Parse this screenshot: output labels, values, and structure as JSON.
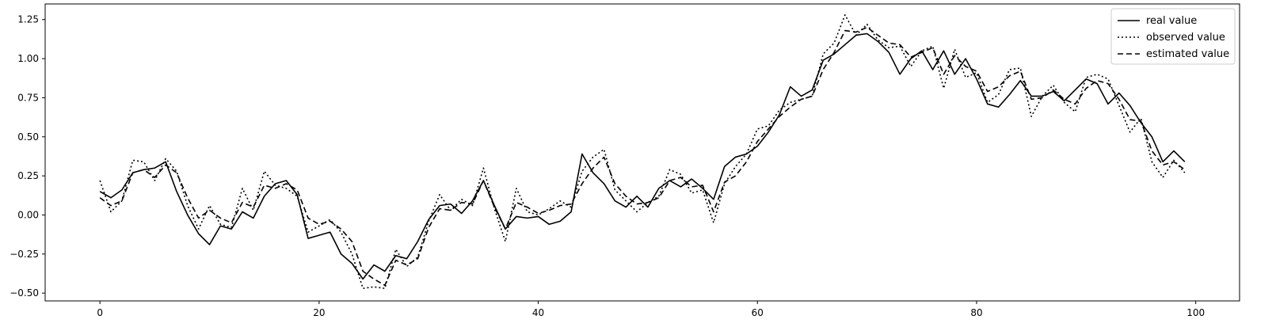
{
  "chart_data": {
    "type": "line",
    "title": "",
    "xlabel": "",
    "ylabel": "",
    "xlim": [
      -5,
      104
    ],
    "ylim": [
      -0.55,
      1.35
    ],
    "xticks": [
      0,
      20,
      40,
      60,
      80,
      100
    ],
    "yticks": [
      -0.5,
      -0.25,
      0.0,
      0.25,
      0.5,
      0.75,
      1.0,
      1.25
    ],
    "xtick_labels": [
      "0",
      "20",
      "40",
      "60",
      "80",
      "100"
    ],
    "ytick_labels": [
      "−0.50",
      "−0.25",
      "0.00",
      "0.25",
      "0.50",
      "0.75",
      "1.00",
      "1.25"
    ],
    "grid": false,
    "legend_position": "top-right",
    "legend": [
      "real value",
      "observed value",
      "estimated value"
    ],
    "x": [
      0,
      1,
      2,
      3,
      4,
      5,
      6,
      7,
      8,
      9,
      10,
      11,
      12,
      13,
      14,
      15,
      16,
      17,
      18,
      19,
      20,
      21,
      22,
      23,
      24,
      25,
      26,
      27,
      28,
      29,
      30,
      31,
      32,
      33,
      34,
      35,
      36,
      37,
      38,
      39,
      40,
      41,
      42,
      43,
      44,
      45,
      46,
      47,
      48,
      49,
      50,
      51,
      52,
      53,
      54,
      55,
      56,
      57,
      58,
      59,
      60,
      61,
      62,
      63,
      64,
      65,
      66,
      67,
      68,
      69,
      70,
      71,
      72,
      73,
      74,
      75,
      76,
      77,
      78,
      79,
      80,
      81,
      82,
      83,
      84,
      85,
      86,
      87,
      88,
      89,
      90,
      91,
      92,
      93,
      94,
      95,
      96,
      97,
      98,
      99
    ],
    "series": [
      {
        "name": "real value",
        "style": "solid",
        "color": "#000000",
        "values": [
          0.15,
          0.11,
          0.16,
          0.27,
          0.29,
          0.3,
          0.34,
          0.15,
          0.0,
          -0.12,
          -0.19,
          -0.07,
          -0.09,
          0.02,
          -0.02,
          0.12,
          0.2,
          0.22,
          0.13,
          -0.15,
          -0.13,
          -0.11,
          -0.25,
          -0.31,
          -0.41,
          -0.32,
          -0.36,
          -0.26,
          -0.28,
          -0.17,
          -0.03,
          0.06,
          0.07,
          0.01,
          0.09,
          0.22,
          0.06,
          -0.09,
          -0.01,
          -0.02,
          -0.01,
          -0.06,
          -0.04,
          0.02,
          0.39,
          0.27,
          0.2,
          0.09,
          0.05,
          0.12,
          0.05,
          0.17,
          0.22,
          0.18,
          0.23,
          0.17,
          0.1,
          0.31,
          0.37,
          0.39,
          0.44,
          0.53,
          0.64,
          0.82,
          0.76,
          0.8,
          0.99,
          1.03,
          1.09,
          1.15,
          1.16,
          1.11,
          1.04,
          0.9,
          1.0,
          1.05,
          0.93,
          1.05,
          0.9,
          1.0,
          0.87,
          0.71,
          0.69,
          0.77,
          0.86,
          0.76,
          0.76,
          0.79,
          0.73,
          0.8,
          0.87,
          0.84,
          0.71,
          0.78,
          0.7,
          0.59,
          0.5,
          0.34,
          0.41,
          0.34
        ]
      },
      {
        "name": "observed value",
        "style": "dotted",
        "color": "#000000",
        "values": [
          0.22,
          0.02,
          0.09,
          0.35,
          0.34,
          0.22,
          0.36,
          0.28,
          0.06,
          -0.09,
          0.06,
          -0.06,
          -0.08,
          0.17,
          0.03,
          0.28,
          0.19,
          0.17,
          0.12,
          -0.11,
          -0.07,
          -0.03,
          -0.11,
          -0.25,
          -0.47,
          -0.46,
          -0.47,
          -0.22,
          -0.33,
          -0.27,
          -0.04,
          0.13,
          0.03,
          0.1,
          0.06,
          0.3,
          0.04,
          -0.17,
          0.17,
          0.02,
          0.0,
          0.04,
          0.09,
          0.05,
          0.28,
          0.37,
          0.42,
          0.16,
          0.09,
          0.02,
          0.08,
          0.12,
          0.29,
          0.26,
          0.14,
          0.16,
          -0.05,
          0.2,
          0.31,
          0.39,
          0.55,
          0.57,
          0.67,
          0.72,
          0.74,
          0.76,
          1.03,
          1.1,
          1.28,
          1.15,
          1.22,
          1.12,
          1.07,
          1.08,
          0.95,
          1.05,
          1.08,
          0.81,
          1.06,
          0.88,
          0.91,
          0.72,
          0.77,
          0.93,
          0.94,
          0.63,
          0.76,
          0.83,
          0.72,
          0.66,
          0.88,
          0.9,
          0.87,
          0.7,
          0.53,
          0.62,
          0.34,
          0.24,
          0.35,
          0.27
        ]
      },
      {
        "name": "estimated value",
        "style": "dashed",
        "color": "#000000",
        "values": [
          0.11,
          0.06,
          0.09,
          0.27,
          0.29,
          0.24,
          0.32,
          0.27,
          0.11,
          -0.02,
          0.03,
          -0.02,
          -0.05,
          0.08,
          0.05,
          0.19,
          0.17,
          0.2,
          0.16,
          -0.02,
          -0.06,
          -0.04,
          -0.09,
          -0.17,
          -0.36,
          -0.41,
          -0.45,
          -0.29,
          -0.32,
          -0.28,
          -0.08,
          0.04,
          0.03,
          0.08,
          0.07,
          0.22,
          0.05,
          -0.09,
          0.08,
          0.05,
          0.01,
          0.03,
          0.06,
          0.07,
          0.2,
          0.3,
          0.37,
          0.2,
          0.12,
          0.07,
          0.08,
          0.11,
          0.22,
          0.24,
          0.18,
          0.19,
          0.02,
          0.21,
          0.25,
          0.34,
          0.47,
          0.55,
          0.63,
          0.69,
          0.74,
          0.76,
          0.93,
          1.04,
          1.18,
          1.17,
          1.2,
          1.15,
          1.1,
          1.09,
          1.01,
          1.04,
          1.07,
          0.9,
          1.02,
          0.95,
          0.92,
          0.79,
          0.82,
          0.89,
          0.92,
          0.74,
          0.75,
          0.8,
          0.74,
          0.71,
          0.81,
          0.86,
          0.84,
          0.74,
          0.61,
          0.6,
          0.41,
          0.32,
          0.34,
          0.29
        ]
      }
    ]
  }
}
